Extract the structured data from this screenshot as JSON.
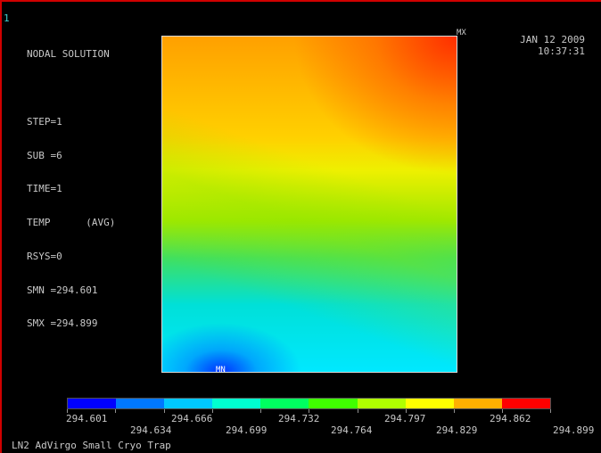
{
  "window_number": "1",
  "info_lines": [
    "NODAL SOLUTION",
    "",
    "STEP=1",
    "SUB =6",
    "TIME=1",
    "TEMP      (AVG)",
    "RSYS=0",
    "SMN =294.601",
    "SMX =294.899"
  ],
  "date": "JAN 12 2009",
  "time": "10:37:31",
  "max_marker": "MX",
  "min_marker": "MN",
  "legend": {
    "colors": [
      "#0000ff",
      "#0078ff",
      "#00c8ff",
      "#00ffd0",
      "#00ff60",
      "#40ff00",
      "#b0ff00",
      "#ffff00",
      "#ffb000",
      "#ff0000"
    ],
    "upper_labels": [
      "294.601",
      "294.666",
      "294.732",
      "294.797",
      "294.862"
    ],
    "lower_labels": [
      "294.634",
      "294.699",
      "294.764",
      "294.829",
      "294.899"
    ]
  },
  "model_title": "LN2 AdVirgo Small Cryo Trap"
}
